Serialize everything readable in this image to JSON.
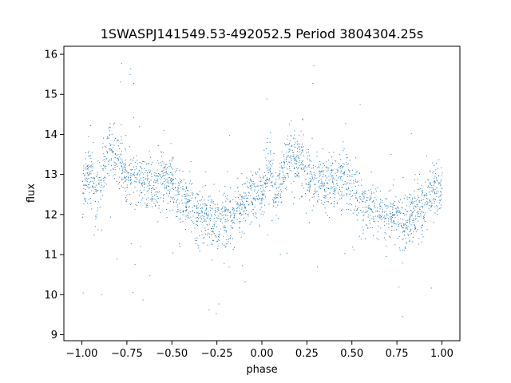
{
  "chart_data": {
    "type": "scatter",
    "title": "1SWASPJ141549.53-492052.5 Period 3804304.25s",
    "xlabel": "phase",
    "ylabel": "flux",
    "xlim": [
      -1.1,
      1.1
    ],
    "ylim": [
      8.85,
      16.2
    ],
    "x_ticks": [
      -1.0,
      -0.75,
      -0.5,
      -0.25,
      0.0,
      0.25,
      0.5,
      0.75,
      1.0
    ],
    "x_tick_labels": [
      "−1.00",
      "−0.75",
      "−0.50",
      "−0.25",
      "0.00",
      "0.25",
      "0.50",
      "0.75",
      "1.00"
    ],
    "y_ticks": [
      9,
      10,
      11,
      12,
      13,
      14,
      15,
      16
    ],
    "y_tick_labels": [
      "9",
      "10",
      "11",
      "12",
      "13",
      "14",
      "15",
      "16"
    ],
    "grid": false,
    "marker_color": "#1f77b4",
    "series": [
      {
        "trend": {
          "phase": [
            0.0,
            0.04,
            0.08,
            0.15,
            0.2,
            0.25,
            0.3,
            0.4,
            0.45,
            0.5,
            0.55,
            0.6,
            0.65,
            0.7,
            0.75,
            0.8,
            0.85,
            0.9,
            0.95,
            1.0
          ],
          "flux": [
            12.6,
            13.2,
            12.4,
            13.6,
            13.3,
            13.0,
            12.9,
            12.7,
            13.0,
            12.8,
            12.3,
            12.2,
            12.0,
            11.95,
            11.85,
            11.9,
            12.0,
            12.2,
            12.6,
            12.6
          ]
        },
        "scatter_sigma": 0.35
      }
    ]
  }
}
